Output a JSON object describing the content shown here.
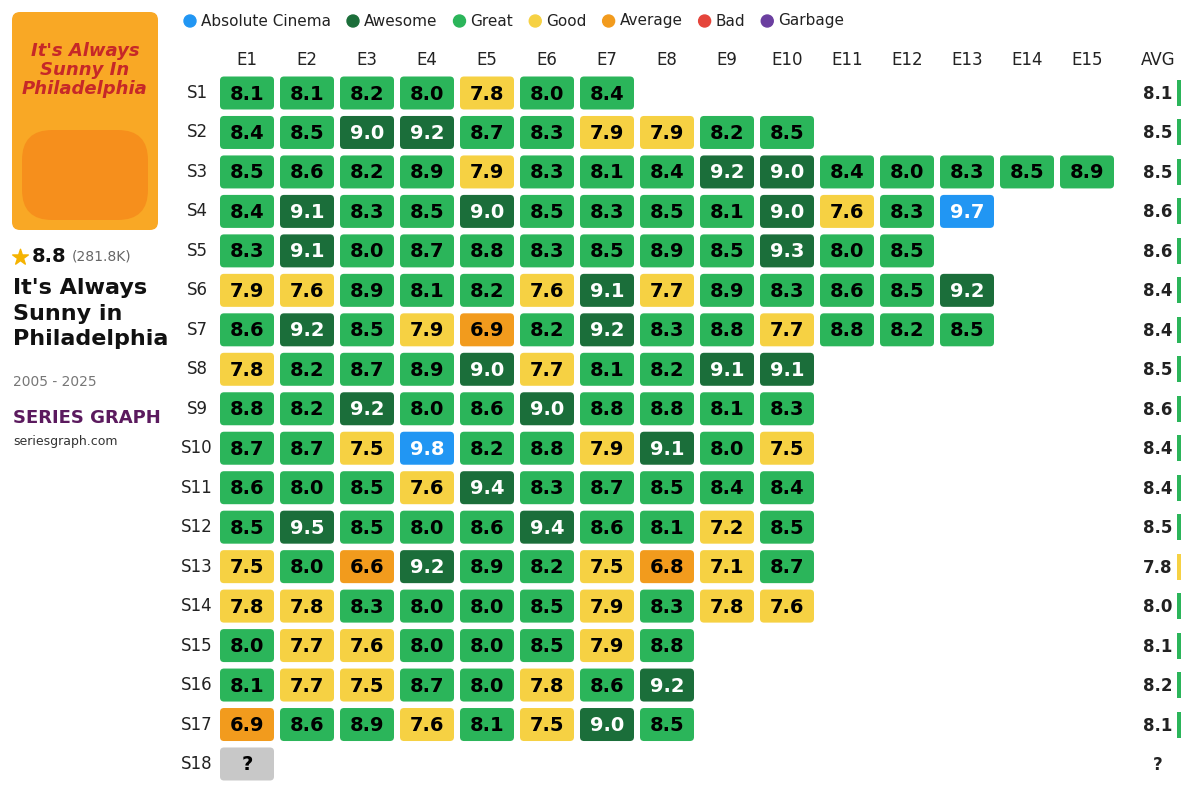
{
  "chart_data": {
    "type": "heatmap",
    "title": "It's Always Sunny in Philadelphia",
    "columns": [
      "E1",
      "E2",
      "E3",
      "E4",
      "E5",
      "E6",
      "E7",
      "E8",
      "E9",
      "E10",
      "E11",
      "E12",
      "E13",
      "E14",
      "E15"
    ],
    "avg_column": "AVG",
    "levels": [
      {
        "name": "Absolute Cinema",
        "color": "#2196f3"
      },
      {
        "name": "Awesome",
        "color": "#1b6e3a"
      },
      {
        "name": "Great",
        "color": "#2bb55a"
      },
      {
        "name": "Good",
        "color": "#f6d143"
      },
      {
        "name": "Average",
        "color": "#f29b1d"
      },
      {
        "name": "Bad",
        "color": "#e5453b"
      },
      {
        "name": "Garbage",
        "color": "#6b3fa0"
      }
    ],
    "rows": [
      {
        "name": "S1",
        "values": [
          8.1,
          8.1,
          8.2,
          8.0,
          7.8,
          8.0,
          8.4
        ],
        "colors": [
          "#2bb55a",
          "#2bb55a",
          "#2bb55a",
          "#2bb55a",
          "#f6d143",
          "#2bb55a",
          "#2bb55a"
        ],
        "avg": 8.1,
        "avg_color": "#2bb55a"
      },
      {
        "name": "S2",
        "values": [
          8.4,
          8.5,
          9.0,
          9.2,
          8.7,
          8.3,
          7.9,
          7.9,
          8.2,
          8.5
        ],
        "colors": [
          "#2bb55a",
          "#2bb55a",
          "#1b6e3a",
          "#1b6e3a",
          "#2bb55a",
          "#2bb55a",
          "#f6d143",
          "#f6d143",
          "#2bb55a",
          "#2bb55a"
        ],
        "avg": 8.5,
        "avg_color": "#2bb55a"
      },
      {
        "name": "S3",
        "values": [
          8.5,
          8.6,
          8.2,
          8.9,
          7.9,
          8.3,
          8.1,
          8.4,
          9.2,
          9.0,
          8.4,
          8.0,
          8.3,
          8.5,
          8.9
        ],
        "colors": [
          "#2bb55a",
          "#2bb55a",
          "#2bb55a",
          "#2bb55a",
          "#f6d143",
          "#2bb55a",
          "#2bb55a",
          "#2bb55a",
          "#1b6e3a",
          "#1b6e3a",
          "#2bb55a",
          "#2bb55a",
          "#2bb55a",
          "#2bb55a",
          "#2bb55a"
        ],
        "avg": 8.5,
        "avg_color": "#2bb55a"
      },
      {
        "name": "S4",
        "values": [
          8.4,
          9.1,
          8.3,
          8.5,
          9.0,
          8.5,
          8.3,
          8.5,
          8.1,
          9.0,
          7.6,
          8.3,
          9.7
        ],
        "colors": [
          "#2bb55a",
          "#1b6e3a",
          "#2bb55a",
          "#2bb55a",
          "#1b6e3a",
          "#2bb55a",
          "#2bb55a",
          "#2bb55a",
          "#2bb55a",
          "#1b6e3a",
          "#f6d143",
          "#2bb55a",
          "#2196f3"
        ],
        "avg": 8.6,
        "avg_color": "#2bb55a"
      },
      {
        "name": "S5",
        "values": [
          8.3,
          9.1,
          8.0,
          8.7,
          8.8,
          8.3,
          8.5,
          8.9,
          8.5,
          9.3,
          8.0,
          8.5
        ],
        "colors": [
          "#2bb55a",
          "#1b6e3a",
          "#2bb55a",
          "#2bb55a",
          "#2bb55a",
          "#2bb55a",
          "#2bb55a",
          "#2bb55a",
          "#2bb55a",
          "#1b6e3a",
          "#2bb55a",
          "#2bb55a"
        ],
        "avg": 8.6,
        "avg_color": "#2bb55a"
      },
      {
        "name": "S6",
        "values": [
          7.9,
          7.6,
          8.9,
          8.1,
          8.2,
          7.6,
          9.1,
          7.7,
          8.9,
          8.3,
          8.6,
          8.5,
          9.2
        ],
        "colors": [
          "#f6d143",
          "#f6d143",
          "#2bb55a",
          "#2bb55a",
          "#2bb55a",
          "#f6d143",
          "#1b6e3a",
          "#f6d143",
          "#2bb55a",
          "#2bb55a",
          "#2bb55a",
          "#2bb55a",
          "#1b6e3a"
        ],
        "avg": 8.4,
        "avg_color": "#2bb55a"
      },
      {
        "name": "S7",
        "values": [
          8.6,
          9.2,
          8.5,
          7.9,
          6.9,
          8.2,
          9.2,
          8.3,
          8.8,
          7.7,
          8.8,
          8.2,
          8.5
        ],
        "colors": [
          "#2bb55a",
          "#1b6e3a",
          "#2bb55a",
          "#f6d143",
          "#f29b1d",
          "#2bb55a",
          "#1b6e3a",
          "#2bb55a",
          "#2bb55a",
          "#f6d143",
          "#2bb55a",
          "#2bb55a",
          "#2bb55a"
        ],
        "avg": 8.4,
        "avg_color": "#2bb55a"
      },
      {
        "name": "S8",
        "values": [
          7.8,
          8.2,
          8.7,
          8.9,
          9.0,
          7.7,
          8.1,
          8.2,
          9.1,
          9.1
        ],
        "colors": [
          "#f6d143",
          "#2bb55a",
          "#2bb55a",
          "#2bb55a",
          "#1b6e3a",
          "#f6d143",
          "#2bb55a",
          "#2bb55a",
          "#1b6e3a",
          "#1b6e3a"
        ],
        "avg": 8.5,
        "avg_color": "#2bb55a"
      },
      {
        "name": "S9",
        "values": [
          8.8,
          8.2,
          9.2,
          8.0,
          8.6,
          9.0,
          8.8,
          8.8,
          8.1,
          8.3
        ],
        "colors": [
          "#2bb55a",
          "#2bb55a",
          "#1b6e3a",
          "#2bb55a",
          "#2bb55a",
          "#1b6e3a",
          "#2bb55a",
          "#2bb55a",
          "#2bb55a",
          "#2bb55a"
        ],
        "avg": 8.6,
        "avg_color": "#2bb55a"
      },
      {
        "name": "S10",
        "values": [
          8.7,
          8.7,
          7.5,
          9.8,
          8.2,
          8.8,
          7.9,
          9.1,
          8.0,
          7.5
        ],
        "colors": [
          "#2bb55a",
          "#2bb55a",
          "#f6d143",
          "#2196f3",
          "#2bb55a",
          "#2bb55a",
          "#f6d143",
          "#1b6e3a",
          "#2bb55a",
          "#f6d143"
        ],
        "avg": 8.4,
        "avg_color": "#2bb55a"
      },
      {
        "name": "S11",
        "values": [
          8.6,
          8.0,
          8.5,
          7.6,
          9.4,
          8.3,
          8.7,
          8.5,
          8.4,
          8.4
        ],
        "colors": [
          "#2bb55a",
          "#2bb55a",
          "#2bb55a",
          "#f6d143",
          "#1b6e3a",
          "#2bb55a",
          "#2bb55a",
          "#2bb55a",
          "#2bb55a",
          "#2bb55a"
        ],
        "avg": 8.4,
        "avg_color": "#2bb55a"
      },
      {
        "name": "S12",
        "values": [
          8.5,
          9.5,
          8.5,
          8.0,
          8.6,
          9.4,
          8.6,
          8.1,
          7.2,
          8.5
        ],
        "colors": [
          "#2bb55a",
          "#1b6e3a",
          "#2bb55a",
          "#2bb55a",
          "#2bb55a",
          "#1b6e3a",
          "#2bb55a",
          "#2bb55a",
          "#f6d143",
          "#2bb55a"
        ],
        "avg": 8.5,
        "avg_color": "#2bb55a"
      },
      {
        "name": "S13",
        "values": [
          7.5,
          8.0,
          6.6,
          9.2,
          8.9,
          8.2,
          7.5,
          6.8,
          7.1,
          8.7
        ],
        "colors": [
          "#f6d143",
          "#2bb55a",
          "#f29b1d",
          "#1b6e3a",
          "#2bb55a",
          "#2bb55a",
          "#f6d143",
          "#f29b1d",
          "#f6d143",
          "#2bb55a"
        ],
        "avg": 7.8,
        "avg_color": "#f6d143"
      },
      {
        "name": "S14",
        "values": [
          7.8,
          7.8,
          8.3,
          8.0,
          8.0,
          8.5,
          7.9,
          8.3,
          7.8,
          7.6
        ],
        "colors": [
          "#f6d143",
          "#f6d143",
          "#2bb55a",
          "#2bb55a",
          "#2bb55a",
          "#2bb55a",
          "#f6d143",
          "#2bb55a",
          "#f6d143",
          "#f6d143"
        ],
        "avg": 8.0,
        "avg_color": "#2bb55a"
      },
      {
        "name": "S15",
        "values": [
          8.0,
          7.7,
          7.6,
          8.0,
          8.0,
          8.5,
          7.9,
          8.8
        ],
        "colors": [
          "#2bb55a",
          "#f6d143",
          "#f6d143",
          "#2bb55a",
          "#2bb55a",
          "#2bb55a",
          "#f6d143",
          "#2bb55a"
        ],
        "avg": 8.1,
        "avg_color": "#2bb55a"
      },
      {
        "name": "S16",
        "values": [
          8.1,
          7.7,
          7.5,
          8.7,
          8.0,
          7.8,
          8.6,
          9.2
        ],
        "colors": [
          "#2bb55a",
          "#f6d143",
          "#f6d143",
          "#2bb55a",
          "#2bb55a",
          "#f6d143",
          "#2bb55a",
          "#1b6e3a"
        ],
        "avg": 8.2,
        "avg_color": "#2bb55a"
      },
      {
        "name": "S17",
        "values": [
          6.9,
          8.6,
          8.9,
          7.6,
          8.1,
          7.5,
          9.0,
          8.5
        ],
        "colors": [
          "#f29b1d",
          "#2bb55a",
          "#2bb55a",
          "#f6d143",
          "#2bb55a",
          "#f6d143",
          "#1b6e3a",
          "#2bb55a"
        ],
        "avg": 8.1,
        "avg_color": "#2bb55a"
      },
      {
        "name": "S18",
        "values": [
          null
        ],
        "value_labels": [
          "?"
        ],
        "colors": [
          "#c8c8c8"
        ],
        "avg": null,
        "avg_label": "?"
      }
    ]
  },
  "sidebar": {
    "poster_title": "It's Always Sunny In Philadelphia",
    "rating": 8.8,
    "votes": "(281.8K)",
    "years": "2005 - 2025",
    "brand": "SERIES GRAPH",
    "site": "seriesgraph.com"
  }
}
